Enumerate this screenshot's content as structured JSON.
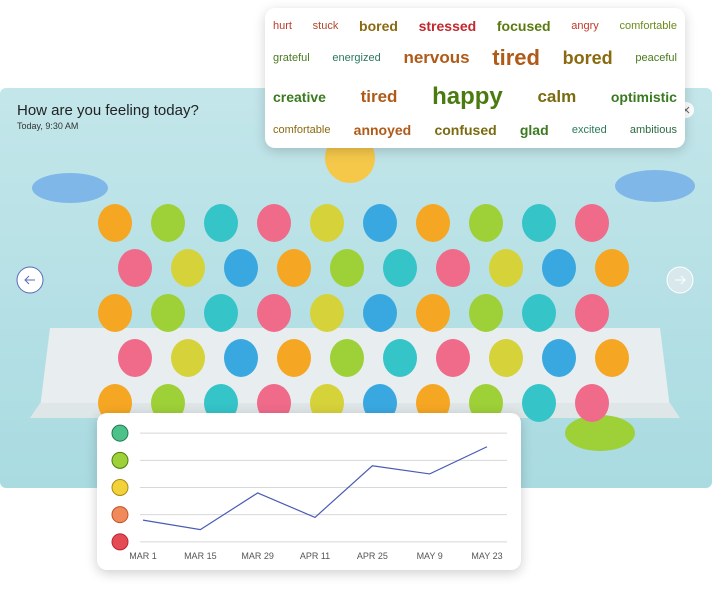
{
  "header": {
    "title": "How are you feeling today?",
    "subtitle": "Today, 9:30 AM"
  },
  "word_cloud": {
    "rows": [
      [
        {
          "text": "hurt",
          "color": "#c0392b"
        },
        {
          "text": "stuck",
          "color": "#b5462a"
        },
        {
          "text": "bored",
          "color": "#8a6a10"
        },
        {
          "text": "stressed",
          "color": "#c0282d"
        },
        {
          "text": "focused",
          "color": "#5a7a10"
        },
        {
          "text": "angry",
          "color": "#c0392b"
        },
        {
          "text": "comfortable",
          "color": "#6a8a1a"
        }
      ],
      [
        {
          "text": "grateful",
          "color": "#4a7a20"
        },
        {
          "text": "energized",
          "color": "#2a7a5a"
        },
        {
          "text": "nervous",
          "color": "#b05a18"
        },
        {
          "text": "tired",
          "color": "#b05a18"
        },
        {
          "text": "bored",
          "color": "#8a6a10"
        },
        {
          "text": "peaceful",
          "color": "#4a7a20"
        }
      ],
      [
        {
          "text": "creative",
          "color": "#3a7a20"
        },
        {
          "text": "tired",
          "color": "#b05a18"
        },
        {
          "text": "happy",
          "color": "#4a7a10"
        },
        {
          "text": "calm",
          "color": "#7a6a10"
        },
        {
          "text": "optimistic",
          "color": "#3a7a20"
        }
      ],
      [
        {
          "text": "comfortable",
          "color": "#8a6a10"
        },
        {
          "text": "annoyed",
          "color": "#b05a18"
        },
        {
          "text": "confused",
          "color": "#7a6a10"
        },
        {
          "text": "glad",
          "color": "#3a7a20"
        },
        {
          "text": "excited",
          "color": "#2a7a5a"
        },
        {
          "text": "ambitious",
          "color": "#2a6a40"
        }
      ]
    ]
  },
  "chart_data": {
    "type": "line",
    "categories": [
      "MAR 1",
      "MAR 15",
      "MAR 29",
      "APR 11",
      "APR 25",
      "MAY 9",
      "MAY 23"
    ],
    "series": [
      {
        "color": "#4a5bb5",
        "values": [
          1.8,
          1.45,
          2.8,
          1.9,
          3.8,
          3.5,
          4.5
        ]
      }
    ],
    "ylim": [
      0.7,
      5.3
    ],
    "yticks": [
      1,
      2,
      3,
      4,
      5
    ],
    "grid": true
  }
}
